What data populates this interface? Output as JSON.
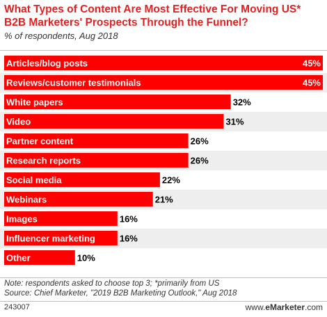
{
  "header": {
    "title": "What Types of Content Are Most Effective For Moving US* B2B Marketers' Prospects Through the Funnel?",
    "subtitle": "% of respondents, Aug 2018"
  },
  "footer": {
    "note": "Note: respondents asked to choose top 3; *primarily from US",
    "source": "Source: Chief Marketer, \"2019 B2B Marketing Outlook,\" Aug 2018",
    "chart_id": "243007",
    "brand_prefix": "www.",
    "brand_name": "eMarketer",
    "brand_suffix": ".com"
  },
  "colors": {
    "bar": "#fe0000",
    "title": "#e41f1f",
    "zebra": "#eeeeee"
  },
  "chart_data": {
    "type": "bar",
    "orientation": "horizontal",
    "categories": [
      "Articles/blog posts",
      "Reviews/customer testimonials",
      "White papers",
      "Video",
      "Partner content",
      "Research reports",
      "Social media",
      "Webinars",
      "Images",
      "Influencer marketing",
      "Other"
    ],
    "values": [
      45,
      45,
      32,
      31,
      26,
      26,
      22,
      21,
      16,
      16,
      10
    ],
    "value_labels": [
      "45%",
      "45%",
      "32%",
      "31%",
      "26%",
      "26%",
      "22%",
      "21%",
      "16%",
      "16%",
      "10%"
    ],
    "unit": "%",
    "xlim": [
      0,
      45
    ],
    "grid": false,
    "legend": "none"
  }
}
